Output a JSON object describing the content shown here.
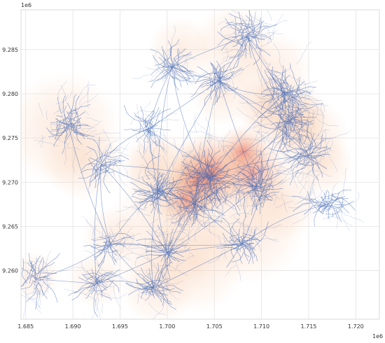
{
  "chart_data": {
    "type": "scatter",
    "title": "",
    "xlabel": "",
    "ylabel": "",
    "x_exponent_label": "1e6",
    "y_exponent_label": "1e6",
    "xlim": [
      1.6845,
      1.7225
    ],
    "ylim": [
      9.2545,
      9.2895
    ],
    "x_ticks": [
      "1.685",
      "1.690",
      "1.695",
      "1.700",
      "1.705",
      "1.710",
      "1.715",
      "1.720"
    ],
    "x_tick_values": [
      1.685,
      1.69,
      1.695,
      1.7,
      1.705,
      1.71,
      1.715,
      1.72
    ],
    "y_ticks": [
      "9.260",
      "9.265",
      "9.270",
      "9.275",
      "9.280",
      "9.285"
    ],
    "y_tick_values": [
      9.26,
      9.265,
      9.27,
      9.275,
      9.28,
      9.285
    ],
    "grid": true,
    "legend": "none",
    "colors": {
      "network": "#3c64b4",
      "heat_low": "#f8c9a6",
      "heat_high": "#e8604c",
      "grid": "#e3e3e3",
      "axis": "#cccccc"
    },
    "network_hubs": [
      {
        "x": 1.7045,
        "y": 9.2705,
        "weight": 1.0
      },
      {
        "x": 1.713,
        "y": 9.277,
        "weight": 0.75
      },
      {
        "x": 1.7125,
        "y": 9.28,
        "weight": 0.55
      },
      {
        "x": 1.7085,
        "y": 9.2865,
        "weight": 0.45
      },
      {
        "x": 1.6895,
        "y": 9.2765,
        "weight": 0.45
      },
      {
        "x": 1.699,
        "y": 9.269,
        "weight": 0.45
      },
      {
        "x": 1.7095,
        "y": 9.2695,
        "weight": 0.55
      },
      {
        "x": 1.703,
        "y": 9.2675,
        "weight": 0.5
      },
      {
        "x": 1.715,
        "y": 9.273,
        "weight": 0.4
      },
      {
        "x": 1.7,
        "y": 9.262,
        "weight": 0.3
      },
      {
        "x": 1.6985,
        "y": 9.258,
        "weight": 0.25
      },
      {
        "x": 1.6925,
        "y": 9.2585,
        "weight": 0.25
      },
      {
        "x": 1.694,
        "y": 9.263,
        "weight": 0.2
      },
      {
        "x": 1.686,
        "y": 9.259,
        "weight": 0.2
      },
      {
        "x": 1.7005,
        "y": 9.283,
        "weight": 0.25
      },
      {
        "x": 1.7055,
        "y": 9.2815,
        "weight": 0.25
      },
      {
        "x": 1.717,
        "y": 9.2675,
        "weight": 0.3
      },
      {
        "x": 1.708,
        "y": 9.263,
        "weight": 0.3
      },
      {
        "x": 1.693,
        "y": 9.272,
        "weight": 0.2
      },
      {
        "x": 1.698,
        "y": 9.276,
        "weight": 0.2
      }
    ],
    "hotspots": [
      {
        "x": 1.7045,
        "y": 9.271,
        "r": 0.002,
        "intensity": 1.0
      },
      {
        "x": 1.703,
        "y": 9.27,
        "r": 0.0015,
        "intensity": 0.9
      },
      {
        "x": 1.702,
        "y": 9.268,
        "r": 0.0014,
        "intensity": 0.8
      },
      {
        "x": 1.709,
        "y": 9.271,
        "r": 0.0018,
        "intensity": 0.6
      },
      {
        "x": 1.708,
        "y": 9.2735,
        "r": 0.0013,
        "intensity": 0.6
      },
      {
        "x": 1.7125,
        "y": 9.2775,
        "r": 0.002,
        "intensity": 0.5
      },
      {
        "x": 1.714,
        "y": 9.277,
        "r": 0.0015,
        "intensity": 0.45
      },
      {
        "x": 1.7105,
        "y": 9.2785,
        "r": 0.0015,
        "intensity": 0.4
      },
      {
        "x": 1.689,
        "y": 9.276,
        "r": 0.0028,
        "intensity": 0.35
      },
      {
        "x": 1.691,
        "y": 9.2725,
        "r": 0.002,
        "intensity": 0.3
      },
      {
        "x": 1.7,
        "y": 9.2705,
        "r": 0.0022,
        "intensity": 0.35
      },
      {
        "x": 1.7,
        "y": 9.264,
        "r": 0.003,
        "intensity": 0.35
      },
      {
        "x": 1.703,
        "y": 9.261,
        "r": 0.0025,
        "intensity": 0.3
      },
      {
        "x": 1.7085,
        "y": 9.265,
        "r": 0.0028,
        "intensity": 0.35
      },
      {
        "x": 1.712,
        "y": 9.268,
        "r": 0.002,
        "intensity": 0.3
      },
      {
        "x": 1.715,
        "y": 9.275,
        "r": 0.002,
        "intensity": 0.3
      },
      {
        "x": 1.711,
        "y": 9.2825,
        "r": 0.002,
        "intensity": 0.25
      },
      {
        "x": 1.707,
        "y": 9.2855,
        "r": 0.002,
        "intensity": 0.25
      },
      {
        "x": 1.7015,
        "y": 9.285,
        "r": 0.0016,
        "intensity": 0.2
      },
      {
        "x": 1.706,
        "y": 9.28,
        "r": 0.0016,
        "intensity": 0.2
      },
      {
        "x": 1.699,
        "y": 9.258,
        "r": 0.0018,
        "intensity": 0.25
      },
      {
        "x": 1.6925,
        "y": 9.259,
        "r": 0.0014,
        "intensity": 0.2
      },
      {
        "x": 1.686,
        "y": 9.2593,
        "r": 0.0012,
        "intensity": 0.2
      },
      {
        "x": 1.694,
        "y": 9.264,
        "r": 0.0014,
        "intensity": 0.15
      },
      {
        "x": 1.7165,
        "y": 9.272,
        "r": 0.0015,
        "intensity": 0.3
      },
      {
        "x": 1.6985,
        "y": 9.272,
        "r": 0.0015,
        "intensity": 0.3
      }
    ]
  }
}
